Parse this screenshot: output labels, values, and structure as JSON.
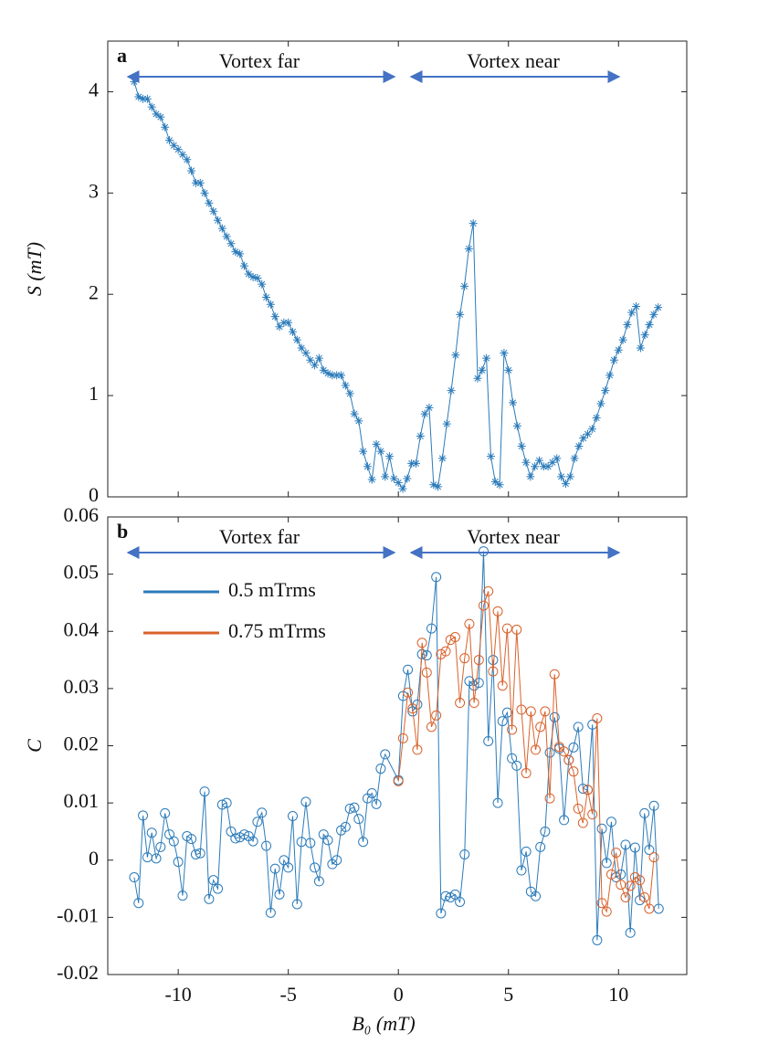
{
  "chart_data": [
    {
      "type": "line",
      "marker": "star",
      "panel_label": "a",
      "ylabel": "S (mT)",
      "annotations": [
        "Vortex far",
        "Vortex near"
      ],
      "xlim": [
        -13.2,
        13.1
      ],
      "xticks": [
        -10,
        -5,
        0,
        5,
        10
      ],
      "ylim": [
        0,
        4.5
      ],
      "yticks": [
        0,
        1,
        2,
        3,
        4
      ],
      "series": [
        {
          "color": "#2b7bba",
          "x": [
            -12,
            -11.8,
            -11.6,
            -11.4,
            -11.2,
            -11,
            -10.8,
            -10.6,
            -10.4,
            -10.2,
            -10,
            -9.8,
            -9.6,
            -9.4,
            -9.2,
            -9,
            -8.8,
            -8.6,
            -8.4,
            -8.2,
            -8,
            -7.8,
            -7.6,
            -7.4,
            -7.2,
            -7,
            -6.8,
            -6.6,
            -6.4,
            -6.2,
            -6,
            -5.8,
            -5.6,
            -5.4,
            -5.2,
            -5,
            -4.8,
            -4.6,
            -4.4,
            -4.2,
            -4,
            -3.8,
            -3.6,
            -3.4,
            -3.2,
            -3,
            -2.8,
            -2.6,
            -2.4,
            -2.2,
            -2,
            -1.8,
            -1.6,
            -1.4,
            -1.2,
            -1,
            -0.8,
            -0.6,
            -0.4,
            -0.2,
            0,
            0.2,
            0.4,
            0.6,
            0.8,
            1,
            1.2,
            1.4,
            1.6,
            1.8,
            2,
            2.2,
            2.4,
            2.6,
            2.8,
            3,
            3.2,
            3.4,
            3.6,
            3.8,
            4,
            4.2,
            4.4,
            4.6,
            4.8,
            5,
            5.2,
            5.4,
            5.6,
            5.8,
            6,
            6.2,
            6.4,
            6.6,
            6.8,
            7,
            7.2,
            7.4,
            7.6,
            7.8,
            8,
            8.2,
            8.4,
            8.6,
            8.8,
            9,
            9.2,
            9.4,
            9.6,
            9.8,
            10,
            10.2,
            10.4,
            10.6,
            10.8,
            11,
            11.2,
            11.4,
            11.6,
            11.8
          ],
          "values": [
            4.1,
            3.95,
            3.93,
            3.93,
            3.85,
            3.78,
            3.75,
            3.65,
            3.52,
            3.47,
            3.43,
            3.38,
            3.33,
            3.22,
            3.1,
            3.1,
            3.0,
            2.9,
            2.82,
            2.73,
            2.65,
            2.57,
            2.5,
            2.42,
            2.4,
            2.28,
            2.2,
            2.17,
            2.16,
            2.1,
            1.97,
            1.9,
            1.78,
            1.68,
            1.72,
            1.72,
            1.63,
            1.55,
            1.47,
            1.42,
            1.35,
            1.3,
            1.37,
            1.25,
            1.22,
            1.2,
            1.2,
            1.2,
            1.1,
            1.02,
            0.82,
            0.75,
            0.45,
            0.3,
            0.17,
            0.52,
            0.45,
            0.2,
            0.4,
            0.18,
            0.14,
            0.08,
            0.18,
            0.33,
            0.33,
            0.6,
            0.82,
            0.88,
            0.12,
            0.1,
            0.38,
            0.72,
            1.05,
            1.4,
            1.8,
            2.08,
            2.45,
            2.7,
            1.17,
            1.25,
            1.37,
            0.4,
            0.15,
            0.12,
            1.42,
            1.25,
            0.93,
            0.7,
            0.5,
            0.34,
            0.2,
            0.3,
            0.36,
            0.3,
            0.3,
            0.34,
            0.38,
            0.2,
            0.13,
            0.2,
            0.38,
            0.5,
            0.58,
            0.62,
            0.67,
            0.78,
            0.92,
            1.05,
            1.2,
            1.35,
            1.45,
            1.55,
            1.7,
            1.82,
            1.88,
            1.47,
            1.6,
            1.7,
            1.8,
            1.87
          ]
        }
      ]
    },
    {
      "type": "line",
      "marker": "circle",
      "panel_label": "b",
      "ylabel": "C",
      "xlabel": "B₀ (mT)",
      "annotations": [
        "Vortex far",
        "Vortex near"
      ],
      "legend": "upper left",
      "xlim": [
        -13.2,
        13.1
      ],
      "xticks": [
        -10,
        -5,
        0,
        5,
        10
      ],
      "ylim": [
        -0.02,
        0.06
      ],
      "yticks": [
        -0.02,
        -0.01,
        0,
        0.01,
        0.02,
        0.03,
        0.04,
        0.05,
        0.06
      ],
      "series": [
        {
          "name": "0.5 mTrms",
          "color": "#2b7bba",
          "x": [
            -12,
            -11.8,
            -11.6,
            -11.4,
            -11.2,
            -11,
            -10.8,
            -10.6,
            -10.4,
            -10.2,
            -10,
            -9.8,
            -9.6,
            -9.4,
            -9.2,
            -9,
            -8.8,
            -8.6,
            -8.4,
            -8.2,
            -8,
            -7.8,
            -7.6,
            -7.4,
            -7.2,
            -7,
            -6.8,
            -6.6,
            -6.4,
            -6.2,
            -6,
            -5.8,
            -5.6,
            -5.4,
            -5.2,
            -5,
            -4.8,
            -4.6,
            -4.4,
            -4.2,
            -4,
            -3.8,
            -3.6,
            -3.4,
            -3.2,
            -3,
            -2.8,
            -2.6,
            -2.4,
            -2.2,
            -2,
            -1.8,
            -1.6,
            -1.4,
            -1.2,
            -1,
            -0.8,
            -0.6,
            0,
            0.215,
            0.43,
            0.645,
            0.86,
            1.075,
            1.29,
            1.505,
            1.72,
            1.935,
            2.15,
            2.365,
            2.58,
            2.795,
            3.01,
            3.225,
            3.44,
            3.655,
            3.87,
            4.085,
            4.3,
            4.515,
            4.73,
            4.945,
            5.16,
            5.375,
            5.59,
            5.805,
            6.02,
            6.235,
            6.45,
            6.665,
            6.88,
            7.095,
            7.31,
            7.525,
            7.74,
            7.955,
            8.17,
            8.385,
            8.6,
            8.815,
            9.03,
            9.245,
            9.46,
            9.675,
            9.89,
            10.105,
            10.32,
            10.535,
            10.75,
            10.965,
            11.18,
            11.395,
            11.61,
            11.825
          ],
          "values": [
            -0.003,
            -0.0075,
            0.0078,
            0.0005,
            0.0048,
            0.0003,
            0.0023,
            0.0082,
            0.0045,
            0.0033,
            -0.0003,
            -0.0062,
            0.0042,
            0.0037,
            0.001,
            0.0012,
            0.012,
            -0.0068,
            -0.0035,
            -0.005,
            0.0097,
            0.01,
            0.005,
            0.0038,
            0.004,
            0.0045,
            0.0042,
            0.0033,
            0.0067,
            0.0083,
            0.0025,
            -0.0092,
            -0.0015,
            -0.006,
            0,
            -0.0013,
            0.0077,
            -0.0077,
            0.0032,
            0.0102,
            0.003,
            -0.0013,
            -0.0037,
            0.0045,
            0.0035,
            -0.0007,
            0,
            0.0052,
            0.0058,
            0.009,
            0.0092,
            0.0072,
            0.0032,
            0.0108,
            0.0117,
            0.0098,
            0.016,
            0.0185,
            0.014,
            0.0287,
            0.0333,
            0.026,
            0.0272,
            0.036,
            0.0358,
            0.0405,
            0.0495,
            -0.0093,
            -0.0063,
            -0.0065,
            -0.006,
            -0.0073,
            0.001,
            0.0313,
            0.0305,
            0.031,
            0.054,
            0.0208,
            0.035,
            0.01,
            0.0243,
            0.0258,
            0.0178,
            0.0165,
            -0.0018,
            0.0015,
            -0.0055,
            -0.0063,
            0.0023,
            0.005,
            0.0188,
            0.025,
            0.0195,
            0.007,
            0.0175,
            0.0197,
            0.0233,
            0.0125,
            0.0123,
            0.0237,
            -0.014,
            0.0055,
            -0.0005,
            0.0067,
            -0.003,
            -0.0025,
            0.0027,
            -0.0127,
            0.0022,
            -0.007,
            0.0082,
            0.0018,
            0.0095,
            -0.0085
          ]
        },
        {
          "name": "0.75 mTrms",
          "color": "#d9622b",
          "x": [
            0,
            0.215,
            0.43,
            0.645,
            0.86,
            1.075,
            1.29,
            1.505,
            1.72,
            1.935,
            2.15,
            2.365,
            2.58,
            2.795,
            3.01,
            3.225,
            3.44,
            3.655,
            3.87,
            4.085,
            4.3,
            4.515,
            4.73,
            4.945,
            5.16,
            5.375,
            5.59,
            5.805,
            6.02,
            6.235,
            6.45,
            6.665,
            6.88,
            7.095,
            7.31,
            7.525,
            7.74,
            7.955,
            8.17,
            8.385,
            8.6,
            8.815,
            9.03,
            9.245,
            9.46,
            9.675,
            9.89,
            10.105,
            10.32,
            10.535,
            10.75,
            10.965,
            11.18,
            11.395,
            11.61
          ],
          "values": [
            0.0138,
            0.0213,
            0.0293,
            0.0265,
            0.0193,
            0.038,
            0.0328,
            0.0233,
            0.0253,
            0.036,
            0.0365,
            0.0385,
            0.039,
            0.0275,
            0.0353,
            0.0413,
            0.0275,
            0.035,
            0.0445,
            0.047,
            0.033,
            0.0435,
            0.0305,
            0.0405,
            0.0228,
            0.0403,
            0.0263,
            0.0152,
            0.026,
            0.0193,
            0.0233,
            0.026,
            0.0108,
            0.0325,
            0.0198,
            0.019,
            0.0175,
            0.0155,
            0.009,
            0.0065,
            0.0123,
            0.008,
            0.0248,
            -0.0075,
            -0.009,
            -0.0025,
            0.0013,
            -0.0043,
            -0.0065,
            -0.0045,
            -0.003,
            -0.0035,
            -0.0065,
            -0.0085,
            0.0005
          ]
        }
      ]
    }
  ]
}
